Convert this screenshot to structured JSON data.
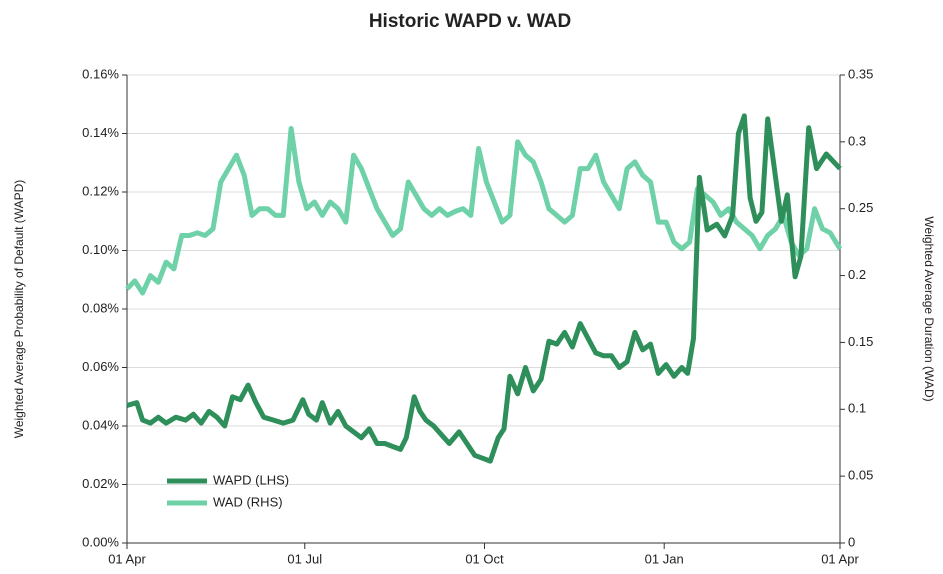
{
  "chart_data": {
    "type": "line",
    "title": "Historic WAPD v. WAD",
    "y_label": "Weighted Average Probability of Default (WAPD)",
    "y2_label": "Weighted Average Duration (WAD)",
    "grid": true,
    "legend": "lower left",
    "xlim": [
      0,
      365
    ],
    "xticks": [
      {
        "value": 0,
        "label": "01 Apr"
      },
      {
        "value": 91,
        "label": "01 Jul"
      },
      {
        "value": 183,
        "label": "01 Oct"
      },
      {
        "value": 275,
        "label": "01 Jan"
      },
      {
        "value": 365,
        "label": "01 Apr"
      }
    ],
    "ylim": [
      0,
      0.16
    ],
    "yticks": [
      {
        "value": 0,
        "label": "0.00%"
      },
      {
        "value": 0.02,
        "label": "0.02%"
      },
      {
        "value": 0.04,
        "label": "0.04%"
      },
      {
        "value": 0.06,
        "label": "0.06%"
      },
      {
        "value": 0.08,
        "label": "0.08%"
      },
      {
        "value": 0.1,
        "label": "0.10%"
      },
      {
        "value": 0.12,
        "label": "0.12%"
      },
      {
        "value": 0.14,
        "label": "0.14%"
      },
      {
        "value": 0.16,
        "label": "0.16%"
      }
    ],
    "y2lim": [
      0,
      0.35
    ],
    "y2ticks": [
      0,
      0.05,
      0.1,
      0.15,
      0.2,
      0.25,
      0.3,
      0.35
    ],
    "series": [
      {
        "name": "WAPD (LHS)",
        "color": "#2f8f5b",
        "axis": "y",
        "x": [
          0,
          5,
          8,
          12,
          16,
          20,
          25,
          30,
          34,
          38,
          42,
          46,
          50,
          54,
          58,
          62,
          66,
          70,
          75,
          80,
          85,
          90,
          93,
          97,
          100,
          104,
          108,
          112,
          116,
          120,
          124,
          128,
          132,
          136,
          140,
          143,
          147,
          150,
          153,
          157,
          161,
          165,
          170,
          174,
          178,
          182,
          186,
          190,
          193,
          196,
          200,
          204,
          208,
          212,
          216,
          220,
          224,
          228,
          232,
          236,
          240,
          244,
          248,
          252,
          256,
          260,
          264,
          268,
          272,
          276,
          280,
          284,
          287,
          290,
          293,
          297,
          302,
          306,
          310,
          313,
          316,
          319,
          322,
          325,
          328,
          331,
          335,
          338,
          342,
          345,
          349,
          353,
          358,
          365
        ],
        "values": [
          0.047,
          0.048,
          0.042,
          0.041,
          0.043,
          0.041,
          0.043,
          0.042,
          0.044,
          0.041,
          0.045,
          0.043,
          0.04,
          0.05,
          0.049,
          0.054,
          0.048,
          0.043,
          0.042,
          0.041,
          0.042,
          0.049,
          0.044,
          0.042,
          0.048,
          0.041,
          0.045,
          0.04,
          0.038,
          0.036,
          0.039,
          0.034,
          0.034,
          0.033,
          0.032,
          0.036,
          0.05,
          0.045,
          0.042,
          0.04,
          0.037,
          0.034,
          0.038,
          0.034,
          0.03,
          0.029,
          0.028,
          0.036,
          0.039,
          0.057,
          0.051,
          0.06,
          0.052,
          0.056,
          0.069,
          0.068,
          0.072,
          0.067,
          0.075,
          0.07,
          0.065,
          0.064,
          0.064,
          0.06,
          0.062,
          0.072,
          0.066,
          0.068,
          0.058,
          0.061,
          0.057,
          0.06,
          0.058,
          0.07,
          0.125,
          0.107,
          0.109,
          0.105,
          0.112,
          0.14,
          0.146,
          0.118,
          0.11,
          0.113,
          0.145,
          0.13,
          0.11,
          0.119,
          0.091,
          0.098,
          0.142,
          0.128,
          0.133,
          0.128
        ]
      },
      {
        "name": "WAD (RHS)",
        "color": "#6fd1a8",
        "axis": "y2",
        "x": [
          0,
          4,
          8,
          12,
          16,
          20,
          24,
          28,
          32,
          36,
          40,
          44,
          48,
          52,
          56,
          60,
          64,
          68,
          72,
          76,
          80,
          84,
          88,
          92,
          96,
          100,
          104,
          108,
          112,
          116,
          120,
          124,
          128,
          132,
          136,
          140,
          144,
          148,
          152,
          156,
          160,
          164,
          168,
          172,
          176,
          180,
          184,
          188,
          192,
          196,
          200,
          204,
          208,
          212,
          216,
          220,
          224,
          228,
          232,
          236,
          240,
          244,
          248,
          252,
          256,
          260,
          264,
          268,
          272,
          276,
          280,
          284,
          288,
          292,
          296,
          300,
          304,
          308,
          312,
          316,
          320,
          324,
          328,
          332,
          336,
          340,
          344,
          348,
          352,
          356,
          360,
          365
        ],
        "values": [
          0.19,
          0.196,
          0.187,
          0.2,
          0.195,
          0.21,
          0.205,
          0.23,
          0.23,
          0.232,
          0.23,
          0.235,
          0.27,
          0.28,
          0.29,
          0.275,
          0.245,
          0.25,
          0.25,
          0.245,
          0.245,
          0.31,
          0.27,
          0.25,
          0.255,
          0.245,
          0.255,
          0.25,
          0.24,
          0.29,
          0.28,
          0.265,
          0.25,
          0.24,
          0.23,
          0.235,
          0.27,
          0.26,
          0.25,
          0.245,
          0.25,
          0.245,
          0.248,
          0.25,
          0.245,
          0.295,
          0.27,
          0.255,
          0.24,
          0.245,
          0.3,
          0.29,
          0.285,
          0.27,
          0.25,
          0.245,
          0.24,
          0.245,
          0.28,
          0.28,
          0.29,
          0.27,
          0.26,
          0.25,
          0.28,
          0.285,
          0.275,
          0.27,
          0.24,
          0.24,
          0.225,
          0.22,
          0.225,
          0.265,
          0.26,
          0.255,
          0.245,
          0.25,
          0.24,
          0.235,
          0.23,
          0.22,
          0.23,
          0.235,
          0.245,
          0.225,
          0.215,
          0.22,
          0.25,
          0.235,
          0.232,
          0.22
        ]
      }
    ]
  }
}
